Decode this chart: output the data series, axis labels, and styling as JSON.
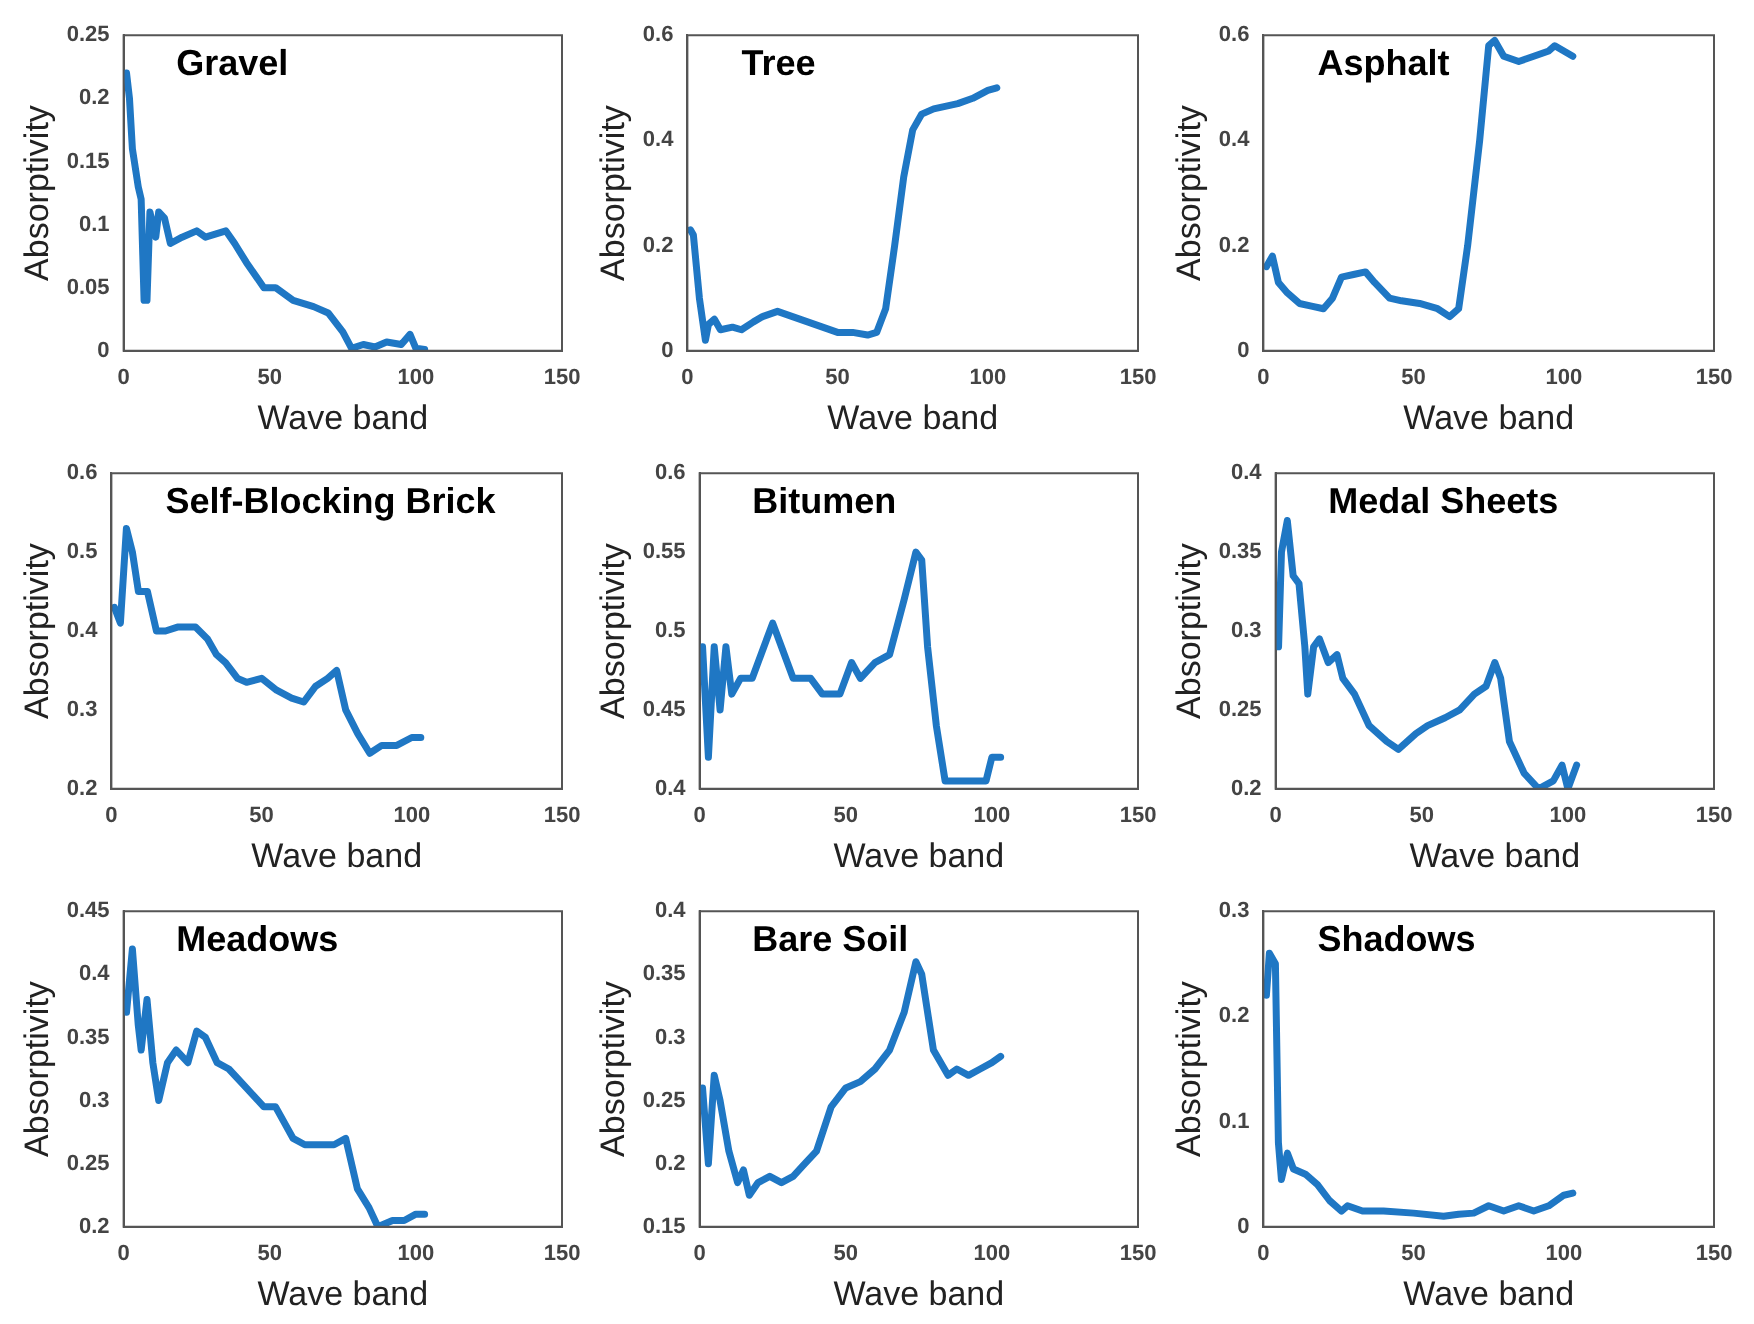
{
  "chart_data": [
    {
      "type": "line",
      "title": "Gravel",
      "xlabel": "Wave band",
      "ylabel": "Absorptivity",
      "xlim": [
        0,
        150
      ],
      "xticks": [
        0,
        50,
        100,
        150
      ],
      "ylim": [
        0,
        0.25
      ],
      "yticks": [
        0,
        0.05,
        0.1,
        0.15,
        0.2,
        0.25
      ],
      "grid": false,
      "series": [
        {
          "color": "#1f77c4",
          "x": [
            1,
            2,
            3,
            5,
            6,
            7,
            8,
            9,
            11,
            12,
            14,
            16,
            20,
            25,
            28,
            35,
            38,
            42,
            48,
            52,
            58,
            65,
            70,
            75,
            78,
            82,
            86,
            90,
            95,
            98,
            100,
            103
          ],
          "values": [
            0.22,
            0.2,
            0.16,
            0.13,
            0.12,
            0.04,
            0.04,
            0.11,
            0.09,
            0.11,
            0.105,
            0.085,
            0.09,
            0.095,
            0.09,
            0.095,
            0.085,
            0.07,
            0.05,
            0.05,
            0.04,
            0.035,
            0.03,
            0.015,
            0.002,
            0.005,
            0.003,
            0.007,
            0.005,
            0.013,
            0.002,
            0.001
          ]
        }
      ]
    },
    {
      "type": "line",
      "title": "Tree",
      "xlabel": "Wave band",
      "ylabel": "Absorptivity",
      "xlim": [
        0,
        150
      ],
      "xticks": [
        0,
        50,
        100,
        150
      ],
      "ylim": [
        0,
        0.6
      ],
      "yticks": [
        0,
        0.2,
        0.4,
        0.6
      ],
      "grid": false,
      "series": [
        {
          "color": "#1f77c4",
          "x": [
            1,
            2,
            4,
            6,
            7,
            9,
            11,
            15,
            18,
            22,
            25,
            30,
            35,
            40,
            45,
            50,
            55,
            60,
            63,
            66,
            69,
            72,
            75,
            78,
            82,
            90,
            95,
            100,
            103
          ],
          "values": [
            0.23,
            0.22,
            0.1,
            0.02,
            0.05,
            0.06,
            0.04,
            0.045,
            0.04,
            0.055,
            0.065,
            0.075,
            0.065,
            0.055,
            0.045,
            0.035,
            0.035,
            0.03,
            0.035,
            0.08,
            0.2,
            0.33,
            0.42,
            0.45,
            0.46,
            0.47,
            0.48,
            0.495,
            0.5
          ]
        }
      ]
    },
    {
      "type": "line",
      "title": "Asphalt",
      "xlabel": "Wave band",
      "ylabel": "Absorptivity",
      "xlim": [
        0,
        150
      ],
      "xticks": [
        0,
        50,
        100,
        150
      ],
      "ylim": [
        0,
        0.6
      ],
      "yticks": [
        0,
        0.2,
        0.4,
        0.6
      ],
      "grid": false,
      "series": [
        {
          "color": "#1f77c4",
          "x": [
            1,
            3,
            5,
            8,
            12,
            16,
            20,
            23,
            26,
            30,
            34,
            37,
            42,
            46,
            52,
            58,
            62,
            65,
            68,
            72,
            75,
            77,
            80,
            85,
            90,
            95,
            97,
            100,
            103
          ],
          "values": [
            0.16,
            0.18,
            0.13,
            0.11,
            0.09,
            0.085,
            0.08,
            0.1,
            0.14,
            0.145,
            0.15,
            0.13,
            0.1,
            0.095,
            0.09,
            0.08,
            0.065,
            0.08,
            0.2,
            0.4,
            0.58,
            0.59,
            0.56,
            0.55,
            0.56,
            0.57,
            0.58,
            0.57,
            0.56
          ]
        }
      ]
    },
    {
      "type": "line",
      "title": "Self-Blocking Brick",
      "xlabel": "Wave band",
      "ylabel": "Absorptivity",
      "xlim": [
        0,
        150
      ],
      "xticks": [
        0,
        50,
        100,
        150
      ],
      "ylim": [
        0.2,
        0.6
      ],
      "yticks": [
        0.2,
        0.3,
        0.4,
        0.5,
        0.6
      ],
      "grid": false,
      "series": [
        {
          "color": "#1f77c4",
          "x": [
            1,
            3,
            5,
            7,
            9,
            12,
            15,
            18,
            22,
            28,
            32,
            35,
            38,
            42,
            45,
            50,
            55,
            60,
            64,
            68,
            72,
            75,
            78,
            82,
            86,
            90,
            95,
            100,
            103
          ],
          "values": [
            0.43,
            0.41,
            0.53,
            0.5,
            0.45,
            0.45,
            0.4,
            0.4,
            0.405,
            0.405,
            0.39,
            0.37,
            0.36,
            0.34,
            0.335,
            0.34,
            0.325,
            0.315,
            0.31,
            0.33,
            0.34,
            0.35,
            0.3,
            0.27,
            0.245,
            0.255,
            0.255,
            0.265,
            0.265
          ]
        }
      ]
    },
    {
      "type": "line",
      "title": "Bitumen",
      "xlabel": "Wave band",
      "ylabel": "Absorptivity",
      "xlim": [
        0,
        150
      ],
      "xticks": [
        0,
        50,
        100,
        150
      ],
      "ylim": [
        0.4,
        0.6
      ],
      "yticks": [
        0.4,
        0.45,
        0.5,
        0.55,
        0.6
      ],
      "grid": false,
      "series": [
        {
          "color": "#1f77c4",
          "x": [
            1,
            3,
            5,
            7,
            9,
            11,
            14,
            18,
            22,
            25,
            28,
            32,
            38,
            42,
            48,
            52,
            55,
            60,
            65,
            70,
            74,
            76,
            78,
            81,
            84,
            88,
            95,
            98,
            100,
            103
          ],
          "values": [
            0.49,
            0.42,
            0.49,
            0.45,
            0.49,
            0.46,
            0.47,
            0.47,
            0.49,
            0.505,
            0.49,
            0.47,
            0.47,
            0.46,
            0.46,
            0.48,
            0.47,
            0.48,
            0.485,
            0.52,
            0.55,
            0.545,
            0.49,
            0.44,
            0.405,
            0.405,
            0.405,
            0.405,
            0.42,
            0.42
          ]
        }
      ]
    },
    {
      "type": "line",
      "title": "Medal Sheets",
      "xlabel": "Wave band",
      "ylabel": "Absorptivity",
      "xlim": [
        0,
        150
      ],
      "xticks": [
        0,
        50,
        100,
        150
      ],
      "ylim": [
        0.2,
        0.4
      ],
      "yticks": [
        0.2,
        0.25,
        0.3,
        0.35,
        0.4
      ],
      "grid": false,
      "series": [
        {
          "color": "#1f77c4",
          "x": [
            1,
            2,
            4,
            6,
            8,
            10,
            11,
            13,
            15,
            18,
            21,
            23,
            27,
            32,
            38,
            42,
            48,
            52,
            58,
            63,
            68,
            72,
            75,
            77,
            80,
            85,
            90,
            95,
            98,
            100,
            103
          ],
          "values": [
            0.29,
            0.35,
            0.37,
            0.335,
            0.33,
            0.29,
            0.26,
            0.29,
            0.295,
            0.28,
            0.285,
            0.27,
            0.26,
            0.24,
            0.23,
            0.225,
            0.235,
            0.24,
            0.245,
            0.25,
            0.26,
            0.265,
            0.28,
            0.27,
            0.23,
            0.21,
            0.2,
            0.205,
            0.215,
            0.2,
            0.215
          ]
        }
      ]
    },
    {
      "type": "line",
      "title": "Meadows",
      "xlabel": "Wave band",
      "ylabel": "Absorptivity",
      "xlim": [
        0,
        150
      ],
      "xticks": [
        0,
        50,
        100,
        150
      ],
      "ylim": [
        0.2,
        0.45
      ],
      "yticks": [
        0.2,
        0.25,
        0.3,
        0.35,
        0.4,
        0.45
      ],
      "grid": false,
      "series": [
        {
          "color": "#1f77c4",
          "x": [
            1,
            3,
            5,
            6,
            8,
            10,
            12,
            15,
            18,
            22,
            25,
            28,
            32,
            36,
            42,
            48,
            52,
            58,
            62,
            68,
            72,
            76,
            80,
            84,
            87,
            92,
            96,
            100,
            103
          ],
          "values": [
            0.37,
            0.42,
            0.36,
            0.34,
            0.38,
            0.33,
            0.3,
            0.33,
            0.34,
            0.33,
            0.355,
            0.35,
            0.33,
            0.325,
            0.31,
            0.295,
            0.295,
            0.27,
            0.265,
            0.265,
            0.265,
            0.27,
            0.23,
            0.215,
            0.2,
            0.205,
            0.205,
            0.21,
            0.21
          ]
        }
      ]
    },
    {
      "type": "line",
      "title": "Bare Soil",
      "xlabel": "Wave band",
      "ylabel": "Absorptivity",
      "xlim": [
        0,
        150
      ],
      "xticks": [
        0,
        50,
        100,
        150
      ],
      "ylim": [
        0.15,
        0.4
      ],
      "yticks": [
        0.15,
        0.2,
        0.25,
        0.3,
        0.35,
        0.4
      ],
      "grid": false,
      "series": [
        {
          "color": "#1f77c4",
          "x": [
            1,
            3,
            5,
            7,
            10,
            13,
            15,
            17,
            20,
            24,
            28,
            32,
            36,
            40,
            45,
            50,
            55,
            60,
            65,
            70,
            74,
            76,
            80,
            85,
            88,
            92,
            96,
            100,
            103
          ],
          "values": [
            0.26,
            0.2,
            0.27,
            0.25,
            0.21,
            0.185,
            0.195,
            0.175,
            0.185,
            0.19,
            0.185,
            0.19,
            0.2,
            0.21,
            0.245,
            0.26,
            0.265,
            0.275,
            0.29,
            0.32,
            0.36,
            0.35,
            0.29,
            0.27,
            0.275,
            0.27,
            0.275,
            0.28,
            0.285
          ]
        }
      ]
    },
    {
      "type": "line",
      "title": "Shadows",
      "xlabel": "Wave band",
      "ylabel": "Absorptivity",
      "xlim": [
        0,
        150
      ],
      "xticks": [
        0,
        50,
        100,
        150
      ],
      "ylim": [
        0,
        0.3
      ],
      "yticks": [
        0,
        0.1,
        0.2,
        0.3
      ],
      "grid": false,
      "series": [
        {
          "color": "#1f77c4",
          "x": [
            1,
            2,
            4,
            5,
            6,
            8,
            10,
            14,
            18,
            22,
            26,
            28,
            33,
            40,
            50,
            60,
            65,
            70,
            75,
            80,
            85,
            90,
            95,
            100,
            103
          ],
          "values": [
            0.22,
            0.26,
            0.25,
            0.08,
            0.045,
            0.07,
            0.055,
            0.05,
            0.04,
            0.025,
            0.015,
            0.02,
            0.015,
            0.015,
            0.013,
            0.01,
            0.012,
            0.013,
            0.02,
            0.015,
            0.02,
            0.015,
            0.02,
            0.03,
            0.032
          ]
        }
      ]
    }
  ]
}
